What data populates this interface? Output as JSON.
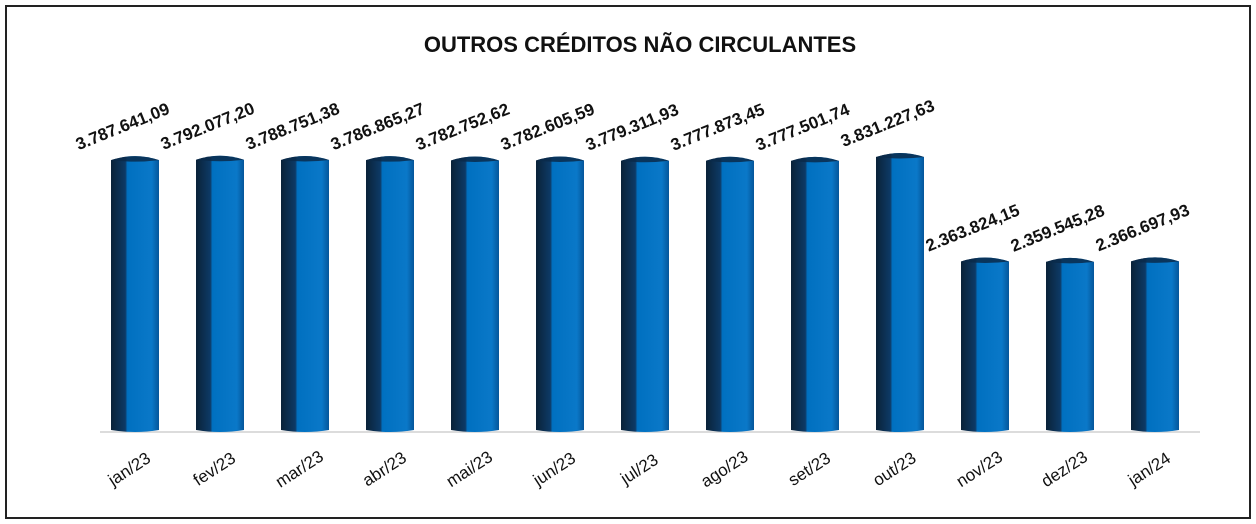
{
  "chart_data": {
    "type": "bar",
    "title": "OUTROS CRÉDITOS NÃO CIRCULANTES",
    "categories": [
      "jan/23",
      "fev/23",
      "mar/23",
      "abr/23",
      "mai/23",
      "jun/23",
      "jul/23",
      "ago/23",
      "set/23",
      "out/23",
      "nov/23",
      "dez/23",
      "jan/24"
    ],
    "values": [
      3787641.09,
      3792077.2,
      3788751.38,
      3786865.27,
      3782752.62,
      3782605.59,
      3779311.93,
      3777873.45,
      3777501.74,
      3831227.63,
      2363824.15,
      2359545.28,
      2366697.93
    ],
    "value_labels": [
      "3.787.641,09",
      "3.792.077,20",
      "3.788.751,38",
      "3.786.865,27",
      "3.782.752,62",
      "3.782.605,59",
      "3.779.311,93",
      "3.777.873,45",
      "3.777.501,74",
      "3.831.227,63",
      "2.363.824,15",
      "2.359.545,28",
      "2.366.697,93"
    ],
    "color": "#0070c0"
  }
}
